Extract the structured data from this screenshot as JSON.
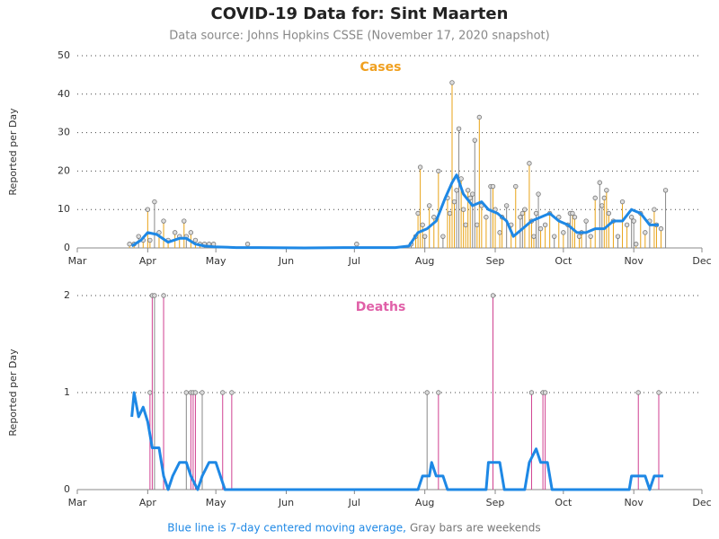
{
  "title": "COVID-19 Data for: Sint Maarten",
  "subtitle": "Data source: Johns Hopkins CSSE (November 17, 2020 snapshot)",
  "note_average": "Blue line is 7-day centered moving average,",
  "note_weekend": "Gray bars are weekends",
  "chart_data": [
    {
      "type": "bar",
      "title": "Cases",
      "y_label": "Reported per Day",
      "color": "#e8a317",
      "title_color": "#f0a020",
      "weekend_color": "#888888",
      "average_color": "#1e88e5",
      "xlim": [
        0,
        275
      ],
      "xticks": [
        {
          "value": 0,
          "label": "Mar"
        },
        {
          "value": 31,
          "label": "Apr"
        },
        {
          "value": 61,
          "label": "May"
        },
        {
          "value": 92,
          "label": "Jun"
        },
        {
          "value": 122,
          "label": "Jul"
        },
        {
          "value": 153,
          "label": "Aug"
        },
        {
          "value": 184,
          "label": "Sep"
        },
        {
          "value": 214,
          "label": "Oct"
        },
        {
          "value": 245,
          "label": "Nov"
        },
        {
          "value": 275,
          "label": "Dec"
        }
      ],
      "ylim": [
        0,
        50
      ],
      "yticks": [
        0,
        10,
        20,
        30,
        40,
        50
      ],
      "grid": true,
      "x": [
        23,
        25,
        27,
        29,
        31,
        32,
        34,
        36,
        38,
        40,
        43,
        45,
        47,
        48,
        50,
        52,
        54,
        56,
        58,
        60,
        75,
        123,
        147,
        149,
        150,
        151,
        152,
        153,
        155,
        157,
        159,
        161,
        163,
        164,
        165,
        166,
        167,
        168,
        169,
        170,
        171,
        172,
        173,
        174,
        175,
        176,
        177,
        178,
        180,
        182,
        183,
        184,
        186,
        187,
        189,
        191,
        193,
        195,
        196,
        197,
        199,
        200,
        201,
        202,
        203,
        204,
        206,
        208,
        210,
        212,
        214,
        216,
        217,
        218,
        219,
        221,
        222,
        224,
        226,
        228,
        230,
        231,
        232,
        233,
        234,
        236,
        238,
        240,
        242,
        244,
        245,
        246,
        248,
        250,
        252,
        254,
        255,
        257,
        259
      ],
      "values": [
        1,
        1,
        3,
        2,
        10,
        2,
        12,
        4,
        7,
        2,
        4,
        3,
        7,
        3,
        4,
        2,
        1,
        1,
        1,
        1,
        1,
        1,
        1,
        3,
        9,
        21,
        6,
        3,
        11,
        8,
        20,
        3,
        13,
        9,
        43,
        12,
        15,
        31,
        18,
        10,
        6,
        15,
        13,
        14,
        28,
        6,
        34,
        11,
        8,
        16,
        16,
        10,
        4,
        8,
        11,
        6,
        16,
        8,
        9,
        10,
        22,
        7,
        3,
        9,
        14,
        5,
        6,
        9,
        3,
        8,
        4,
        6,
        9,
        9,
        8,
        3,
        4,
        7,
        3,
        13,
        17,
        11,
        13,
        15,
        9,
        7,
        3,
        12,
        6,
        8,
        7,
        1,
        9,
        4,
        7,
        10,
        6,
        5,
        15
      ],
      "moving_average": {
        "x": [
          24,
          28,
          31,
          35,
          40,
          45,
          48,
          52,
          56,
          60,
          70,
          80,
          100,
          120,
          140,
          146,
          150,
          154,
          158,
          162,
          165,
          167,
          170,
          174,
          178,
          181,
          185,
          189,
          192,
          196,
          200,
          204,
          208,
          212,
          216,
          220,
          224,
          228,
          232,
          236,
          240,
          244,
          248,
          252,
          256
        ],
        "values": [
          0.5,
          2,
          4,
          3.5,
          1.5,
          2.5,
          2.5,
          1,
          0.5,
          0.3,
          0.1,
          0.1,
          0,
          0.1,
          0.1,
          0.5,
          4,
          5,
          7,
          13,
          17,
          19,
          14,
          11,
          12,
          10,
          9,
          7,
          3,
          5,
          7,
          8,
          9,
          7,
          6,
          4,
          4,
          5,
          5,
          7,
          7,
          10,
          9,
          6,
          6
        ]
      }
    },
    {
      "type": "bar",
      "title": "Deaths",
      "y_label": "Reported per Day",
      "color": "#d04090",
      "title_color": "#e060a8",
      "weekend_color": "#888888",
      "average_color": "#1e88e5",
      "xlim": [
        0,
        275
      ],
      "xticks": [
        {
          "value": 0,
          "label": "Mar"
        },
        {
          "value": 31,
          "label": "Apr"
        },
        {
          "value": 61,
          "label": "May"
        },
        {
          "value": 92,
          "label": "Jun"
        },
        {
          "value": 122,
          "label": "Jul"
        },
        {
          "value": 153,
          "label": "Aug"
        },
        {
          "value": 184,
          "label": "Sep"
        },
        {
          "value": 214,
          "label": "Oct"
        },
        {
          "value": 245,
          "label": "Nov"
        },
        {
          "value": 275,
          "label": "Dec"
        }
      ],
      "ylim": [
        0,
        2
      ],
      "yticks": [
        0,
        1,
        2
      ],
      "grid": true,
      "x": [
        32,
        33,
        34,
        38,
        48,
        50,
        51,
        52,
        55,
        64,
        68,
        154,
        159,
        183,
        200,
        205,
        206,
        247,
        256
      ],
      "values": [
        1,
        2,
        2,
        2,
        1,
        1,
        1,
        1,
        1,
        1,
        1,
        1,
        1,
        2,
        1,
        1,
        1,
        1,
        1
      ],
      "moving_average": {
        "x": [
          24,
          25,
          27,
          29,
          31,
          33,
          36,
          38,
          40,
          42,
          45,
          48,
          50,
          53,
          55,
          58,
          61,
          63,
          65,
          150,
          152,
          155,
          156,
          158,
          161,
          163,
          180,
          181,
          186,
          188,
          197,
          199,
          202,
          204,
          207,
          209,
          243,
          244,
          250,
          252,
          254,
          258
        ],
        "values": [
          0.75,
          1,
          0.75,
          0.85,
          0.7,
          0.43,
          0.43,
          0.14,
          0,
          0.14,
          0.28,
          0.28,
          0.14,
          0,
          0.14,
          0.28,
          0.28,
          0.14,
          0,
          0,
          0.14,
          0.14,
          0.28,
          0.14,
          0.14,
          0,
          0,
          0.28,
          0.28,
          0,
          0,
          0.28,
          0.42,
          0.28,
          0.28,
          0,
          0,
          0.14,
          0.14,
          0,
          0.14,
          0.14
        ]
      }
    }
  ]
}
